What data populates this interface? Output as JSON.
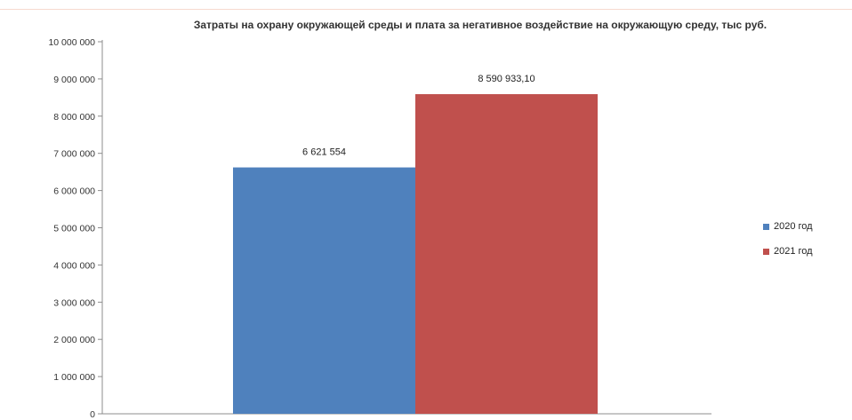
{
  "chart_data": {
    "type": "bar",
    "title": "Затраты на охрану окружающей среды и плата за негативное воздействие на окружающую среду, тыс руб.",
    "categories": [
      ""
    ],
    "series": [
      {
        "name": "2020 год",
        "values": [
          6621554
        ],
        "label": "6 621 554",
        "color": "#4f81bd"
      },
      {
        "name": "2021 год",
        "values": [
          8590933.1
        ],
        "label": "8 590 933,10",
        "color": "#c0504d"
      }
    ],
    "ylim": [
      0,
      10000000
    ],
    "yticks": [
      0,
      1000000,
      2000000,
      3000000,
      4000000,
      5000000,
      6000000,
      7000000,
      8000000,
      9000000,
      10000000
    ],
    "ytick_labels": [
      "0",
      "1 000 000",
      "2 000 000",
      "3 000 000",
      "4 000 000",
      "5 000 000",
      "6 000 000",
      "7 000 000",
      "8 000 000",
      "9 000 000",
      "10 000 000"
    ],
    "grid": false,
    "legend_position": "right"
  }
}
